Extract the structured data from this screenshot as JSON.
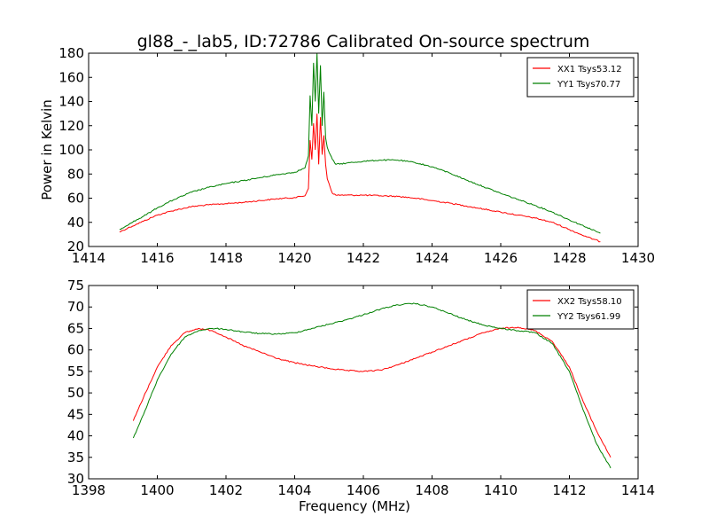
{
  "figure": {
    "title": "gl88_-_lab5, ID:72786 Calibrated On-source spectrum"
  },
  "chart_data": [
    {
      "type": "line",
      "title": "gl88_-_lab5, ID:72786 Calibrated On-source spectrum",
      "xlabel": "",
      "ylabel": "Power in Kelvin",
      "xlim": [
        1414,
        1430
      ],
      "ylim": [
        20,
        180
      ],
      "xticks": [
        1414,
        1416,
        1418,
        1420,
        1422,
        1424,
        1426,
        1428,
        1430
      ],
      "yticks": [
        20,
        40,
        60,
        80,
        100,
        120,
        140,
        160,
        180
      ],
      "grid": false,
      "legend": "top-right",
      "series": [
        {
          "name": "XX1 Tsys53.12",
          "color": "#ff0000",
          "x": [
            1414.9,
            1415.2,
            1415.6,
            1416.0,
            1416.5,
            1417.0,
            1417.5,
            1418.0,
            1418.5,
            1419.0,
            1419.5,
            1420.0,
            1420.3,
            1420.4,
            1420.45,
            1420.5,
            1420.55,
            1420.6,
            1420.65,
            1420.7,
            1420.75,
            1420.8,
            1420.85,
            1420.9,
            1420.95,
            1421.0,
            1421.1,
            1421.2,
            1421.5,
            1422.0,
            1422.5,
            1423.0,
            1423.5,
            1424.0,
            1424.5,
            1425.0,
            1425.5,
            1426.0,
            1426.5,
            1427.0,
            1427.5,
            1428.0,
            1428.5,
            1428.9
          ],
          "y": [
            32,
            36,
            41,
            46,
            50,
            53,
            54.5,
            55.5,
            56.5,
            58,
            59.5,
            60.5,
            62,
            68,
            108,
            92,
            122,
            100,
            130,
            88,
            127,
            96,
            112,
            88,
            76,
            72,
            64,
            62.5,
            62.5,
            62.5,
            62,
            61.5,
            60,
            58,
            56,
            53.5,
            51,
            48.5,
            46,
            43.5,
            40,
            34,
            28,
            24
          ]
        },
        {
          "name": "YY1 Tsys70.77",
          "color": "#008000",
          "x": [
            1414.9,
            1415.2,
            1415.6,
            1416.0,
            1416.5,
            1417.0,
            1417.5,
            1418.0,
            1418.5,
            1419.0,
            1419.5,
            1420.0,
            1420.3,
            1420.4,
            1420.45,
            1420.5,
            1420.55,
            1420.6,
            1420.65,
            1420.7,
            1420.75,
            1420.8,
            1420.85,
            1420.9,
            1420.95,
            1421.0,
            1421.1,
            1421.2,
            1421.5,
            1422.0,
            1422.5,
            1423.0,
            1423.5,
            1424.0,
            1424.5,
            1425.0,
            1425.5,
            1426.0,
            1426.5,
            1427.0,
            1427.5,
            1428.0,
            1428.5,
            1428.9
          ],
          "y": [
            34,
            39,
            45,
            52,
            59,
            65,
            69,
            72,
            74.5,
            77,
            79.5,
            81.5,
            85,
            95,
            145,
            120,
            172,
            140,
            180,
            130,
            170,
            120,
            148,
            110,
            102,
            98,
            92,
            88,
            89,
            90.5,
            91.5,
            91.5,
            89.5,
            86,
            81,
            75,
            69.5,
            64,
            59,
            54,
            48.5,
            42,
            36,
            31
          ]
        }
      ]
    },
    {
      "type": "line",
      "title": "",
      "xlabel": "Frequency (MHz)",
      "ylabel": "",
      "xlim": [
        1398,
        1414
      ],
      "ylim": [
        30,
        75
      ],
      "xticks": [
        1398,
        1400,
        1402,
        1404,
        1406,
        1408,
        1410,
        1412,
        1414
      ],
      "yticks": [
        30,
        35,
        40,
        45,
        50,
        55,
        60,
        65,
        70,
        75
      ],
      "grid": false,
      "legend": "top-right",
      "series": [
        {
          "name": "XX2 Tsys58.10",
          "color": "#ff0000",
          "x": [
            1399.3,
            1399.6,
            1400.0,
            1400.4,
            1400.8,
            1401.2,
            1401.6,
            1402.0,
            1402.5,
            1403.0,
            1403.5,
            1404.0,
            1404.5,
            1405.0,
            1405.5,
            1406.0,
            1406.5,
            1407.0,
            1407.5,
            1408.0,
            1408.5,
            1409.0,
            1409.5,
            1410.0,
            1410.5,
            1411.0,
            1411.5,
            1412.0,
            1412.4,
            1412.8,
            1413.2
          ],
          "y": [
            43.5,
            49,
            56,
            61,
            64,
            65,
            64.5,
            63,
            61,
            59.5,
            58,
            57,
            56.3,
            55.7,
            55.2,
            55,
            55.3,
            56.5,
            58,
            59.5,
            61,
            62.5,
            64,
            65,
            65.3,
            64.5,
            62,
            56,
            48,
            41,
            35
          ]
        },
        {
          "name": "YY2 Tsys61.99",
          "color": "#008000",
          "x": [
            1399.3,
            1399.6,
            1400.0,
            1400.4,
            1400.8,
            1401.2,
            1401.6,
            1402.0,
            1402.5,
            1403.0,
            1403.5,
            1404.0,
            1404.5,
            1405.0,
            1405.5,
            1406.0,
            1406.5,
            1407.0,
            1407.5,
            1408.0,
            1408.5,
            1409.0,
            1409.5,
            1410.0,
            1410.5,
            1411.0,
            1411.5,
            1412.0,
            1412.4,
            1412.8,
            1413.2
          ],
          "y": [
            39.5,
            45,
            53,
            59,
            63,
            64.5,
            65,
            64.8,
            64.2,
            63.8,
            63.7,
            64,
            65,
            66,
            67,
            68.2,
            69.5,
            70.5,
            70.8,
            70,
            68.5,
            67,
            65.8,
            65,
            64.5,
            64,
            61.5,
            55,
            46,
            38,
            32.5
          ]
        }
      ]
    }
  ]
}
